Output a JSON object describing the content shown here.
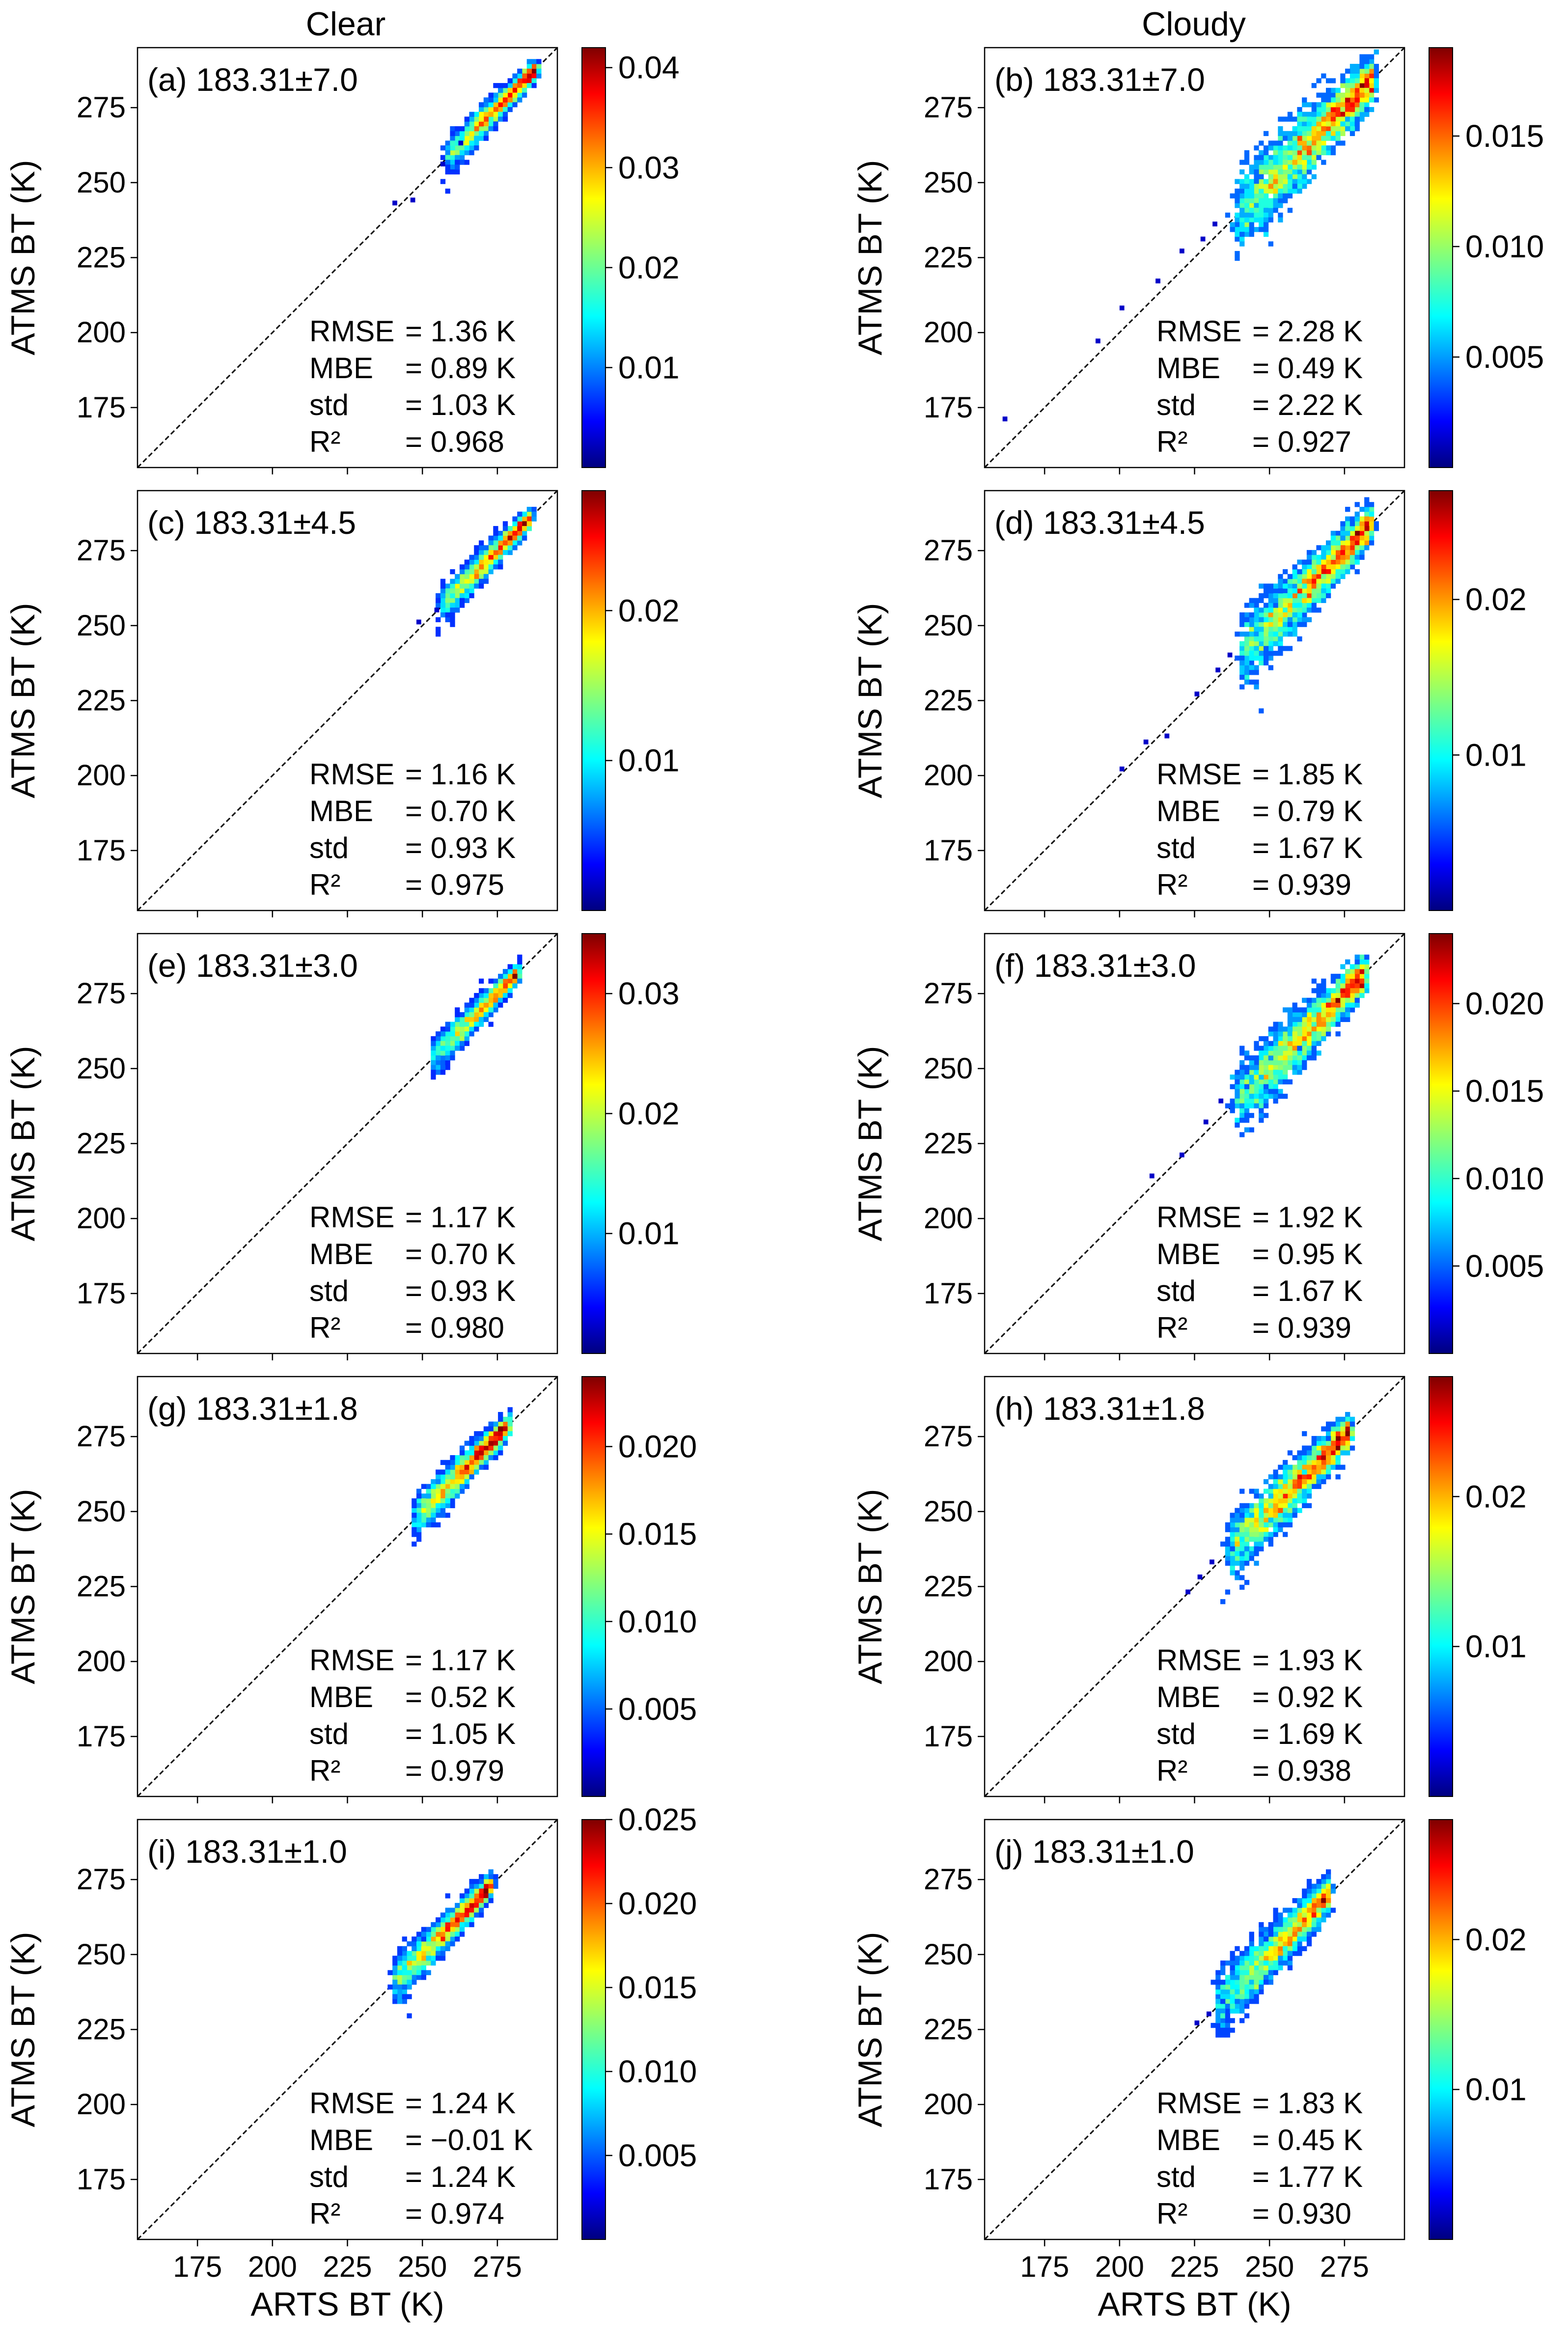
{
  "column_titles": [
    "Clear",
    "Cloudy"
  ],
  "colors": {
    "background": "#ffffff",
    "axis": "#000000",
    "one_to_one_line": "#000000",
    "colormap": [
      "#00007f",
      "#0000ff",
      "#007fff",
      "#00ffff",
      "#7fff7f",
      "#ffff00",
      "#ff7f00",
      "#ff0000",
      "#7f0000"
    ]
  },
  "chart_data": [
    {
      "type": "scatter",
      "subtype": "2d-density-histogram",
      "column": "Clear",
      "panel_label": "(a) 183.31±7.0",
      "ylabel": "ATMS BT (K)",
      "xlabel": "",
      "xlim": [
        155,
        295
      ],
      "ylim": [
        155,
        295
      ],
      "xticks": [
        175,
        200,
        225,
        250,
        275
      ],
      "yticks": [
        175,
        200,
        225,
        250,
        275
      ],
      "colorbar": {
        "min": 0.0,
        "max": 0.042,
        "ticks": [
          0.01,
          0.02,
          0.03,
          0.04
        ],
        "tick_labels": [
          "0.01",
          "0.02",
          "0.03",
          "0.04"
        ]
      },
      "stats": [
        "RMSE = 1.36 K",
        "MBE  = 0.89 K",
        "std  = 1.03 K",
        "R²   = 0.968"
      ],
      "density": {
        "x_min": 258,
        "x_max": 288,
        "spread": 2.5,
        "outliers": [
          [
            240,
            244
          ],
          [
            246,
            245
          ],
          [
            256,
            257
          ],
          [
            262,
            264
          ]
        ]
      }
    },
    {
      "type": "scatter",
      "subtype": "2d-density-histogram",
      "column": "Cloudy",
      "panel_label": "(b) 183.31±7.0",
      "ylabel": "ATMS BT (K)",
      "xlabel": "",
      "xlim": [
        155,
        295
      ],
      "ylim": [
        155,
        295
      ],
      "xticks": [
        175,
        200,
        225,
        250,
        275
      ],
      "yticks": [
        175,
        200,
        225,
        250,
        275
      ],
      "colorbar": {
        "min": 0.0,
        "max": 0.019,
        "ticks": [
          0.005,
          0.01,
          0.015
        ],
        "tick_labels": [
          "0.005",
          "0.010",
          "0.015"
        ]
      },
      "stats": [
        "RMSE = 2.28 K",
        "MBE  = 0.49 K",
        "std  = 2.22 K",
        "R²   = 0.927"
      ],
      "density": {
        "x_min": 238,
        "x_max": 285,
        "spread": 6,
        "outliers": [
          [
            161,
            172
          ],
          [
            192,
            198
          ],
          [
            200,
            209
          ],
          [
            212,
            218
          ],
          [
            220,
            228
          ],
          [
            227,
            232
          ],
          [
            231,
            237
          ]
        ]
      }
    },
    {
      "type": "scatter",
      "subtype": "2d-density-histogram",
      "column": "Clear",
      "panel_label": "(c) 183.31±4.5",
      "ylabel": "ATMS BT (K)",
      "xlabel": "",
      "xlim": [
        155,
        295
      ],
      "ylim": [
        155,
        295
      ],
      "xticks": [
        175,
        200,
        225,
        250,
        275
      ],
      "yticks": [
        175,
        200,
        225,
        250,
        275
      ],
      "colorbar": {
        "min": 0.0,
        "max": 0.028,
        "ticks": [
          0.01,
          0.02
        ],
        "tick_labels": [
          "0.01",
          "0.02"
        ]
      },
      "stats": [
        "RMSE = 1.16 K",
        "MBE  = 0.70 K",
        "std  = 0.93 K",
        "R²   = 0.975"
      ],
      "density": {
        "x_min": 256,
        "x_max": 286,
        "spread": 2.5,
        "outliers": [
          [
            248,
            252
          ],
          [
            254,
            256
          ]
        ]
      }
    },
    {
      "type": "scatter",
      "subtype": "2d-density-histogram",
      "column": "Cloudy",
      "panel_label": "(d) 183.31±4.5",
      "ylabel": "ATMS BT (K)",
      "xlabel": "",
      "xlim": [
        155,
        295
      ],
      "ylim": [
        155,
        295
      ],
      "xticks": [
        175,
        200,
        225,
        250,
        275
      ],
      "yticks": [
        175,
        200,
        225,
        250,
        275
      ],
      "colorbar": {
        "min": 0.0,
        "max": 0.027,
        "ticks": [
          0.01,
          0.02
        ],
        "tick_labels": [
          "0.01",
          "0.02"
        ]
      },
      "stats": [
        "RMSE = 1.85 K",
        "MBE  = 0.79 K",
        "std  = 1.67 K",
        "R²   = 0.939"
      ],
      "density": {
        "x_min": 240,
        "x_max": 284,
        "spread": 5,
        "outliers": [
          [
            200,
            203
          ],
          [
            208,
            212
          ],
          [
            215,
            214
          ],
          [
            225,
            228
          ],
          [
            232,
            236
          ],
          [
            236,
            241
          ]
        ]
      }
    },
    {
      "type": "scatter",
      "subtype": "2d-density-histogram",
      "column": "Clear",
      "panel_label": "(e) 183.31±3.0",
      "ylabel": "ATMS BT (K)",
      "xlabel": "",
      "xlim": [
        155,
        295
      ],
      "ylim": [
        155,
        295
      ],
      "xticks": [
        175,
        200,
        225,
        250,
        275
      ],
      "yticks": [
        175,
        200,
        225,
        250,
        275
      ],
      "colorbar": {
        "min": 0.0,
        "max": 0.035,
        "ticks": [
          0.01,
          0.02,
          0.03
        ],
        "tick_labels": [
          "0.01",
          "0.02",
          "0.03"
        ]
      },
      "stats": [
        "RMSE = 1.17 K",
        "MBE  = 0.70 K",
        "std  = 0.93 K",
        "R²   = 0.980"
      ],
      "density": {
        "x_min": 253,
        "x_max": 282,
        "spread": 2.5,
        "outliers": []
      }
    },
    {
      "type": "scatter",
      "subtype": "2d-density-histogram",
      "column": "Cloudy",
      "panel_label": "(f) 183.31±3.0",
      "ylabel": "ATMS BT (K)",
      "xlabel": "",
      "xlim": [
        155,
        295
      ],
      "ylim": [
        155,
        295
      ],
      "xticks": [
        175,
        200,
        225,
        250,
        275
      ],
      "yticks": [
        175,
        200,
        225,
        250,
        275
      ],
      "colorbar": {
        "min": 0.0,
        "max": 0.024,
        "ticks": [
          0.005,
          0.01,
          0.015,
          0.02
        ],
        "tick_labels": [
          "0.005",
          "0.010",
          "0.015",
          "0.020"
        ]
      },
      "stats": [
        "RMSE = 1.92 K",
        "MBE  = 0.95 K",
        "std  = 1.67 K",
        "R²   = 0.939"
      ],
      "density": {
        "x_min": 238,
        "x_max": 282,
        "spread": 5,
        "outliers": [
          [
            210,
            215
          ],
          [
            220,
            222
          ],
          [
            228,
            233
          ],
          [
            233,
            240
          ]
        ]
      }
    },
    {
      "type": "scatter",
      "subtype": "2d-density-histogram",
      "column": "Clear",
      "panel_label": "(g) 183.31±1.8",
      "ylabel": "ATMS BT (K)",
      "xlabel": "",
      "xlim": [
        155,
        295
      ],
      "ylim": [
        155,
        295
      ],
      "xticks": [
        175,
        200,
        225,
        250,
        275
      ],
      "yticks": [
        175,
        200,
        225,
        250,
        275
      ],
      "colorbar": {
        "min": 0.0,
        "max": 0.024,
        "ticks": [
          0.005,
          0.01,
          0.015,
          0.02
        ],
        "tick_labels": [
          "0.005",
          "0.010",
          "0.015",
          "0.020"
        ]
      },
      "stats": [
        "RMSE = 1.17 K",
        "MBE  = 0.52 K",
        "std  = 1.05 K",
        "R²   = 0.979"
      ],
      "density": {
        "x_min": 247,
        "x_max": 279,
        "spread": 3,
        "outliers": []
      }
    },
    {
      "type": "scatter",
      "subtype": "2d-density-histogram",
      "column": "Cloudy",
      "panel_label": "(h) 183.31±1.8",
      "ylabel": "ATMS BT (K)",
      "xlabel": "",
      "xlim": [
        155,
        295
      ],
      "ylim": [
        155,
        295
      ],
      "xticks": [
        175,
        200,
        225,
        250,
        275
      ],
      "yticks": [
        175,
        200,
        225,
        250,
        275
      ],
      "colorbar": {
        "min": 0.0,
        "max": 0.028,
        "ticks": [
          0.01,
          0.02
        ],
        "tick_labels": [
          "0.01",
          "0.02"
        ]
      },
      "stats": [
        "RMSE = 1.93 K",
        "MBE  = 0.92 K",
        "std  = 1.69 K",
        "R²   = 0.938"
      ],
      "density": {
        "x_min": 236,
        "x_max": 277,
        "spread": 4.5,
        "outliers": [
          [
            222,
            224
          ],
          [
            226,
            229
          ],
          [
            230,
            234
          ]
        ]
      }
    },
    {
      "type": "scatter",
      "subtype": "2d-density-histogram",
      "column": "Clear",
      "panel_label": "(i) 183.31±1.0",
      "ylabel": "ATMS BT (K)",
      "xlabel": "ARTS BT (K)",
      "xlim": [
        155,
        295
      ],
      "ylim": [
        155,
        295
      ],
      "xticks": [
        175,
        200,
        225,
        250,
        275
      ],
      "yticks": [
        175,
        200,
        225,
        250,
        275
      ],
      "colorbar": {
        "min": 0.0,
        "max": 0.025,
        "ticks": [
          0.005,
          0.01,
          0.015,
          0.02,
          0.025
        ],
        "tick_labels": [
          "0.005",
          "0.010",
          "0.015",
          "0.020",
          "0.025"
        ]
      },
      "stats": [
        "RMSE = 1.24 K",
        "MBE  = −0.01 K",
        "std  = 1.24 K",
        "R²   = 0.974"
      ],
      "density": {
        "x_min": 240,
        "x_max": 273,
        "spread": 3,
        "outliers": []
      }
    },
    {
      "type": "scatter",
      "subtype": "2d-density-histogram",
      "column": "Cloudy",
      "panel_label": "(j) 183.31±1.0",
      "ylabel": "ATMS BT (K)",
      "xlabel": "ARTS BT (K)",
      "xlim": [
        155,
        295
      ],
      "ylim": [
        155,
        295
      ],
      "xticks": [
        175,
        200,
        225,
        250,
        275
      ],
      "yticks": [
        175,
        200,
        225,
        250,
        275
      ],
      "colorbar": {
        "min": 0.0,
        "max": 0.028,
        "ticks": [
          0.01,
          0.02
        ],
        "tick_labels": [
          "0.01",
          "0.02"
        ]
      },
      "stats": [
        "RMSE = 1.83 K",
        "MBE  = 0.45 K",
        "std  = 1.77 K",
        "R²   = 0.930"
      ],
      "density": {
        "x_min": 232,
        "x_max": 270,
        "spread": 4.5,
        "outliers": [
          [
            225,
            228
          ],
          [
            229,
            231
          ]
        ]
      }
    }
  ]
}
